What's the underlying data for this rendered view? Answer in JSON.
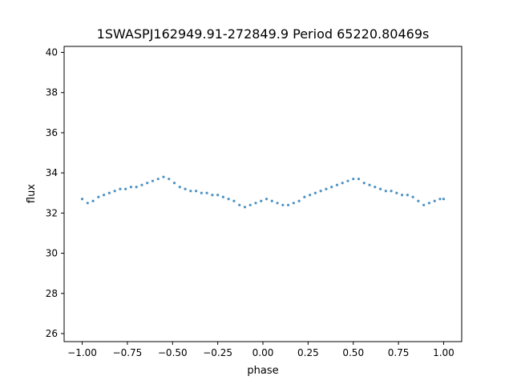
{
  "chart_data": {
    "type": "scatter",
    "title": "1SWASPJ162949.91-272849.9 Period 65220.80469s",
    "xlabel": "phase",
    "ylabel": "flux",
    "xlim": [
      -1.1,
      1.1
    ],
    "ylim": [
      25.6,
      40.3
    ],
    "x_ticks": [
      -1.0,
      -0.75,
      -0.5,
      -0.25,
      0.0,
      0.25,
      0.5,
      0.75,
      1.0
    ],
    "x_tick_labels": [
      "−1.00",
      "−0.75",
      "−0.50",
      "−0.25",
      "0.00",
      "0.25",
      "0.50",
      "0.75",
      "1.00"
    ],
    "y_ticks": [
      26,
      28,
      30,
      32,
      34,
      36,
      38,
      40
    ],
    "y_tick_labels": [
      "26",
      "28",
      "30",
      "32",
      "34",
      "36",
      "38",
      "40"
    ],
    "grid": false,
    "legend": "none",
    "point_color": "#1f77b4",
    "series": [
      {
        "x": [
          -1.0,
          -0.97,
          -0.94,
          -0.91,
          -0.88,
          -0.85,
          -0.82,
          -0.79,
          -0.76,
          -0.73,
          -0.7,
          -0.67,
          -0.64,
          -0.61,
          -0.58,
          -0.55,
          -0.52,
          -0.49,
          -0.46,
          -0.43,
          -0.4,
          -0.37,
          -0.34,
          -0.31,
          -0.28,
          -0.25,
          -0.22,
          -0.19,
          -0.16,
          -0.13,
          -0.1,
          -0.07,
          -0.04,
          -0.01,
          0.02,
          0.05,
          0.08,
          0.11,
          0.14,
          0.17,
          0.2,
          0.23,
          0.26,
          0.29,
          0.32,
          0.35,
          0.38,
          0.41,
          0.44,
          0.47,
          0.5,
          0.53,
          0.56,
          0.59,
          0.62,
          0.65,
          0.68,
          0.71,
          0.74,
          0.77,
          0.8,
          0.83,
          0.86,
          0.89,
          0.92,
          0.95,
          0.98,
          1.0
        ],
        "y": [
          32.7,
          32.5,
          32.6,
          32.8,
          32.9,
          33.0,
          33.1,
          33.2,
          33.2,
          33.3,
          33.3,
          33.4,
          33.5,
          33.6,
          33.7,
          33.8,
          33.7,
          33.5,
          33.3,
          33.2,
          33.1,
          33.1,
          33.0,
          33.0,
          32.9,
          32.9,
          32.8,
          32.7,
          32.6,
          32.4,
          32.3,
          32.4,
          32.5,
          32.6,
          32.7,
          32.6,
          32.5,
          32.4,
          32.4,
          32.5,
          32.6,
          32.8,
          32.9,
          33.0,
          33.1,
          33.2,
          33.3,
          33.4,
          33.5,
          33.6,
          33.7,
          33.7,
          33.5,
          33.4,
          33.3,
          33.2,
          33.1,
          33.1,
          33.0,
          32.9,
          32.9,
          32.8,
          32.6,
          32.4,
          32.5,
          32.6,
          32.7,
          32.7
        ]
      }
    ]
  }
}
